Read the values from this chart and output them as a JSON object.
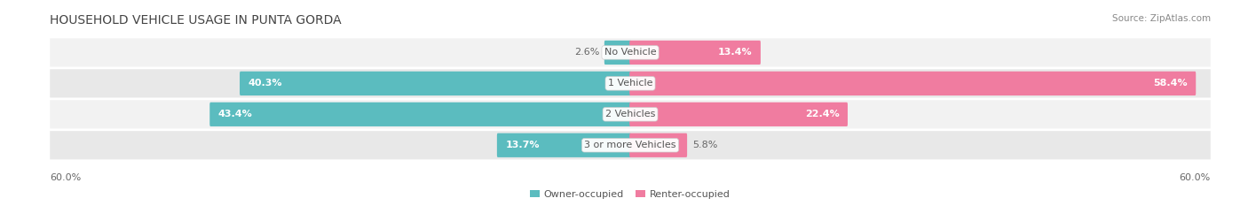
{
  "title": "HOUSEHOLD VEHICLE USAGE IN PUNTA GORDA",
  "source": "Source: ZipAtlas.com",
  "categories": [
    "No Vehicle",
    "1 Vehicle",
    "2 Vehicles",
    "3 or more Vehicles"
  ],
  "owner_values": [
    2.6,
    40.3,
    43.4,
    13.7
  ],
  "renter_values": [
    13.4,
    58.4,
    22.4,
    5.8
  ],
  "owner_color": "#5bbcbf",
  "renter_color": "#f07ca0",
  "row_bg_color_odd": "#f2f2f2",
  "row_bg_color_even": "#e8e8e8",
  "max_value": 60.0,
  "axis_label_left": "60.0%",
  "axis_label_right": "60.0%",
  "legend_owner": "Owner-occupied",
  "legend_renter": "Renter-occupied",
  "title_fontsize": 10,
  "source_fontsize": 7.5,
  "label_fontsize": 8,
  "category_fontsize": 8,
  "axis_fontsize": 8,
  "background_color": "#ffffff",
  "title_color": "#444444",
  "source_color": "#888888",
  "label_color_inside": "#ffffff",
  "label_color_outside": "#666666",
  "category_color": "#555555"
}
